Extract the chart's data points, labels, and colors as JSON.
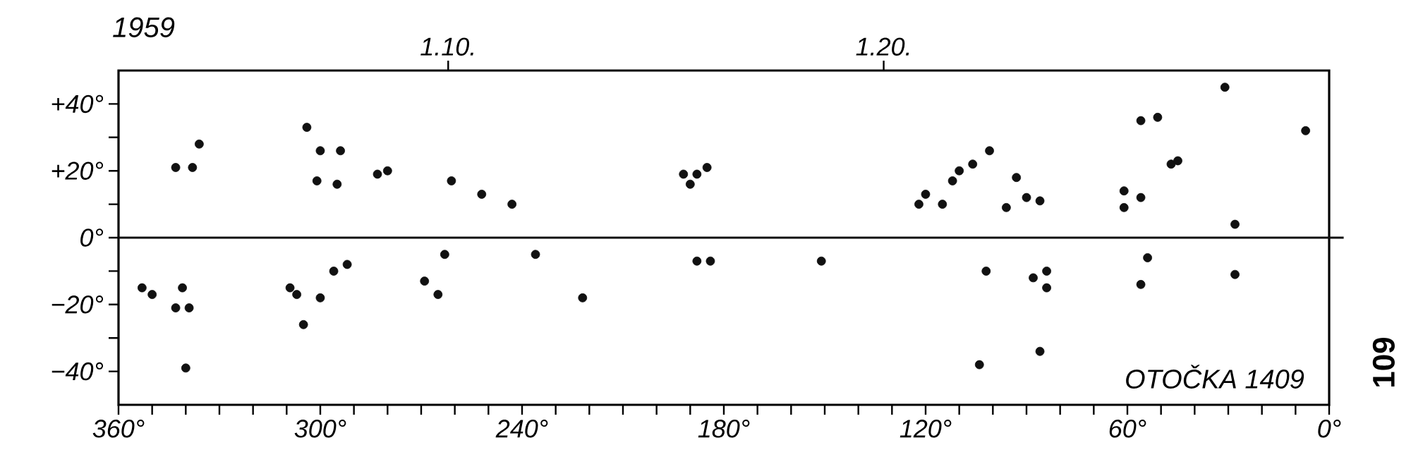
{
  "chart_data": {
    "type": "scatter",
    "annotations": [
      "1959",
      "OTOČKA 1409",
      "109"
    ],
    "x": [
      353,
      350,
      341,
      339,
      343,
      340,
      336,
      338,
      343,
      304,
      300,
      294,
      301,
      295,
      283,
      280,
      252,
      243,
      261,
      309,
      307,
      300,
      305,
      296,
      292,
      269,
      265,
      263,
      236,
      192,
      188,
      190,
      185,
      188,
      184,
      151,
      222,
      122,
      120,
      115,
      112,
      110,
      106,
      101,
      93,
      96,
      90,
      86,
      61,
      61,
      56,
      56,
      51,
      47,
      45,
      31,
      7,
      28,
      54,
      102,
      88,
      84,
      84,
      28,
      86,
      104,
      56
    ],
    "series": [
      {
        "color": "#111111",
        "values": [
          -15,
          -17,
          -15,
          -21,
          -21,
          -39,
          28,
          21,
          21,
          33,
          26,
          26,
          17,
          16,
          19,
          20,
          13,
          10,
          17,
          -15,
          -17,
          -18,
          -26,
          -10,
          -8,
          -13,
          -17,
          -5,
          -5,
          19,
          19,
          16,
          21,
          -7,
          -7,
          -7,
          -18,
          10,
          13,
          10,
          17,
          20,
          22,
          26,
          18,
          9,
          12,
          11,
          9,
          14,
          12,
          35,
          36,
          22,
          23,
          45,
          32,
          4,
          -6,
          -10,
          -12,
          -10,
          -15,
          -11,
          -34,
          -38,
          -14
        ]
      }
    ],
    "marker": "circle",
    "xlim": [
      360,
      0
    ],
    "ylim": [
      -50,
      50
    ],
    "xticks": [
      {
        "value": 360,
        "label": "360°"
      },
      {
        "value": 350,
        "label": null
      },
      {
        "value": 340,
        "label": null
      },
      {
        "value": 330,
        "label": null
      },
      {
        "value": 320,
        "label": null
      },
      {
        "value": 310,
        "label": null
      },
      {
        "value": 300,
        "label": "300°"
      },
      {
        "value": 290,
        "label": null
      },
      {
        "value": 280,
        "label": null
      },
      {
        "value": 270,
        "label": null
      },
      {
        "value": 260,
        "label": null
      },
      {
        "value": 250,
        "label": null
      },
      {
        "value": 240,
        "label": "240°"
      },
      {
        "value": 230,
        "label": null
      },
      {
        "value": 220,
        "label": null
      },
      {
        "value": 210,
        "label": null
      },
      {
        "value": 200,
        "label": null
      },
      {
        "value": 190,
        "label": null
      },
      {
        "value": 180,
        "label": "180°"
      },
      {
        "value": 170,
        "label": null
      },
      {
        "value": 160,
        "label": null
      },
      {
        "value": 150,
        "label": null
      },
      {
        "value": 140,
        "label": null
      },
      {
        "value": 130,
        "label": null
      },
      {
        "value": 120,
        "label": "120°"
      },
      {
        "value": 110,
        "label": null
      },
      {
        "value": 100,
        "label": null
      },
      {
        "value": 90,
        "label": null
      },
      {
        "value": 80,
        "label": null
      },
      {
        "value": 70,
        "label": null
      },
      {
        "value": 60,
        "label": "60°"
      },
      {
        "value": 50,
        "label": null
      },
      {
        "value": 40,
        "label": null
      },
      {
        "value": 30,
        "label": null
      },
      {
        "value": 20,
        "label": null
      },
      {
        "value": 10,
        "label": null
      },
      {
        "value": 0,
        "label": "0°"
      }
    ],
    "yticks": [
      {
        "value": -40,
        "label": "−40°"
      },
      {
        "value": -30,
        "label": null
      },
      {
        "value": -20,
        "label": "−20°"
      },
      {
        "value": -10,
        "label": null
      },
      {
        "value": 0,
        "label": "0°"
      },
      {
        "value": 10,
        "label": null
      },
      {
        "value": 20,
        "label": "+20°"
      },
      {
        "value": 30,
        "label": null
      },
      {
        "value": 40,
        "label": "+40°"
      }
    ],
    "x2lim": [
      "1959-01-02T10:20",
      "1959-01-30T05:30"
    ],
    "x2ticks": [
      {
        "value": "1959-01-10",
        "label": "1.10."
      },
      {
        "value": "1959-01-20",
        "label": "1.20."
      }
    ],
    "ref_lines": [
      {
        "axis": "y",
        "value": 0,
        "color": "#111111",
        "line_style": "solid"
      }
    ],
    "grid": false
  }
}
